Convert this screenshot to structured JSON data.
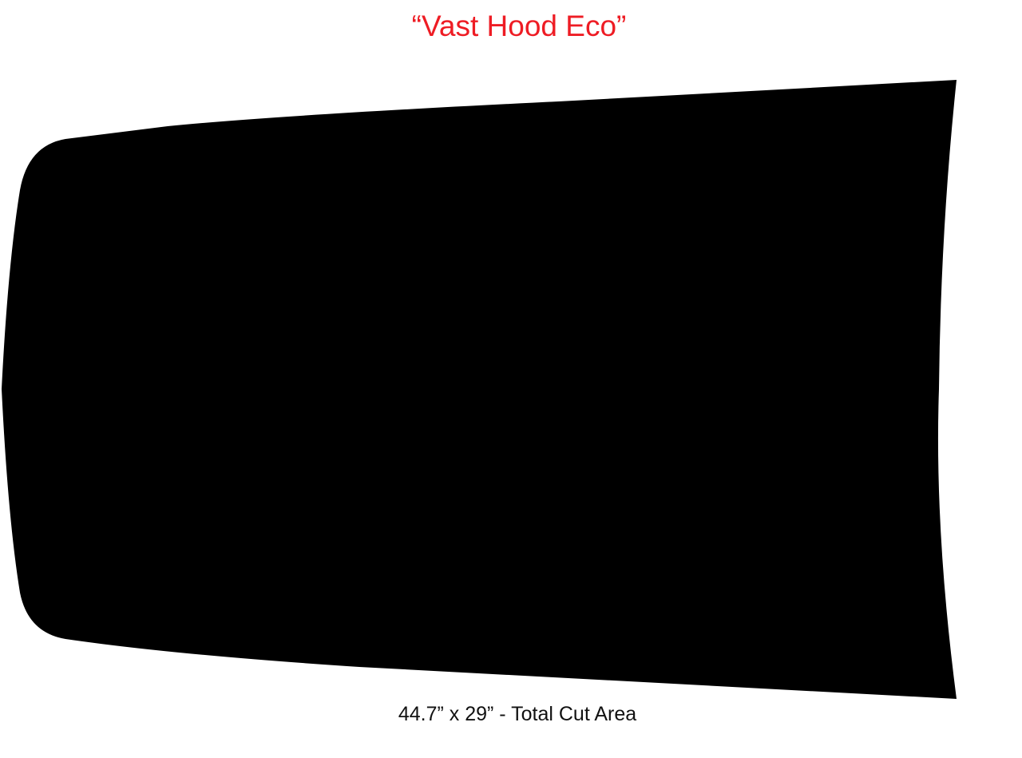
{
  "title": "“Vast Hood Eco”",
  "caption": "44.7” x 29” - Total Cut Area",
  "colors": {
    "title": "#ee1c24",
    "shape_fill": "#000000",
    "caption": "#111111"
  }
}
